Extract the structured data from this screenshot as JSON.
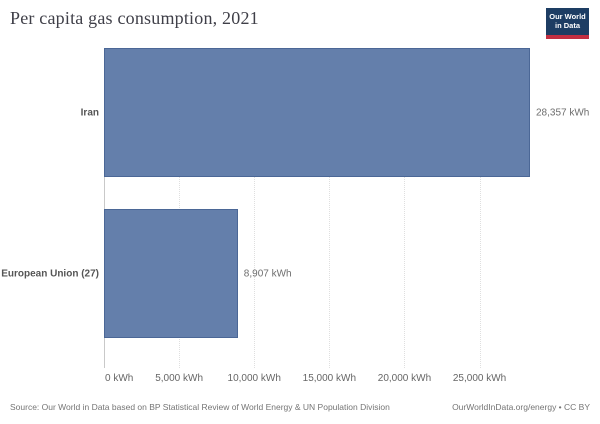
{
  "header": {
    "title": "Per capita gas consumption, 2021",
    "logo": {
      "line1": "Our World",
      "line2": "in Data"
    }
  },
  "chart_data": {
    "type": "bar",
    "orientation": "horizontal",
    "title": "Per capita gas consumption, 2021",
    "categories": [
      "Iran",
      "European Union (27)"
    ],
    "values": [
      28357,
      8907
    ],
    "value_labels": [
      "28,357 kWh",
      "8,907 kWh"
    ],
    "unit": "kWh",
    "xlim": [
      0,
      28357
    ],
    "x_tick_values": [
      0,
      5000,
      10000,
      15000,
      20000,
      25000
    ],
    "x_tick_labels": [
      "0 kWh",
      "5,000 kWh",
      "10,000 kWh",
      "15,000 kWh",
      "20,000 kWh",
      "25,000 kWh"
    ],
    "bar_color": "#647fab",
    "grid": true,
    "legend": "none",
    "colors": {
      "bar": "#647fab",
      "bar_edge": "#4e6b9a",
      "gridline": "#dfdfdf",
      "axis_line": "#c9c9c9",
      "entity_label": "#555555",
      "value_label": "#6e6e6e"
    }
  },
  "footer": {
    "source": "Source: Our World in Data based on BP Statistical Review of World Energy & UN Population Division",
    "license": "OurWorldInData.org/energy • CC BY"
  }
}
